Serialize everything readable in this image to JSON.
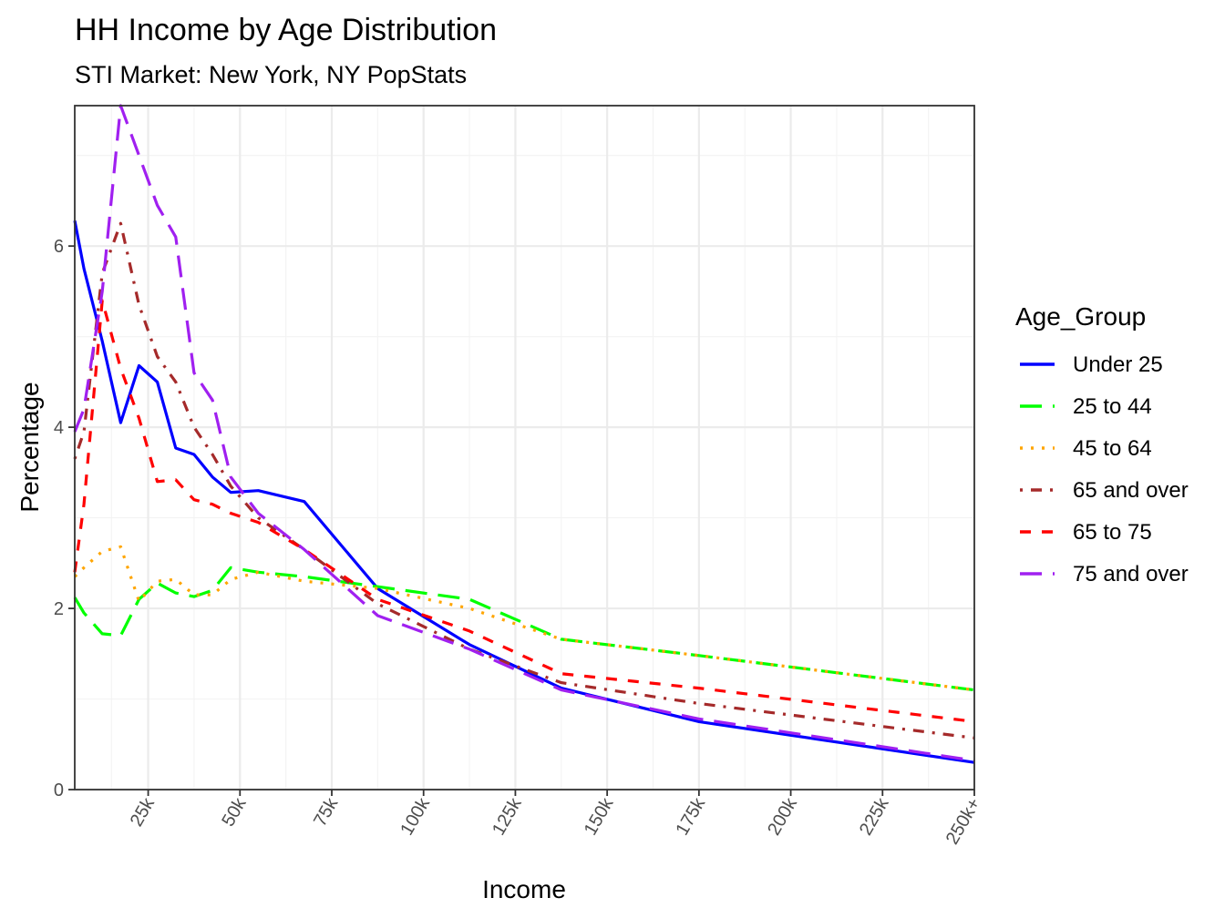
{
  "chart_data": {
    "type": "line",
    "title": "HH Income by Age Distribution",
    "subtitle": "STI Market: New York, NY PopStats",
    "xlabel": "Income",
    "ylabel": "Percentage",
    "x_unit": "thousands of dollars",
    "xlim": [
      5,
      250
    ],
    "ylim": [
      0,
      7.55
    ],
    "x_ticks": [
      {
        "value": 25,
        "label": "25k"
      },
      {
        "value": 50,
        "label": "50k"
      },
      {
        "value": 75,
        "label": "75k"
      },
      {
        "value": 100,
        "label": "100k"
      },
      {
        "value": 125,
        "label": "125k"
      },
      {
        "value": 150,
        "label": "150k"
      },
      {
        "value": 175,
        "label": "175k"
      },
      {
        "value": 200,
        "label": "200k"
      },
      {
        "value": 225,
        "label": "225k"
      },
      {
        "value": 250,
        "label": "250k+"
      }
    ],
    "y_ticks": [
      {
        "value": 0,
        "label": "0"
      },
      {
        "value": 2,
        "label": "2"
      },
      {
        "value": 4,
        "label": "4"
      },
      {
        "value": 6,
        "label": "6"
      }
    ],
    "grid": true,
    "legend": {
      "title": "Age_Group",
      "position": "right"
    },
    "x": [
      5,
      7.5,
      12.5,
      17.5,
      22.5,
      27.5,
      32.5,
      37.5,
      42.5,
      47.5,
      55,
      67.5,
      87.5,
      112.5,
      137.5,
      175,
      250
    ],
    "series": [
      {
        "name": "Under 25",
        "color": "#0000ff",
        "dash": "solid",
        "values": [
          6.28,
          5.75,
          4.95,
          4.05,
          4.68,
          4.5,
          3.77,
          3.7,
          3.45,
          3.28,
          3.3,
          3.18,
          2.22,
          1.6,
          1.12,
          0.75,
          0.3
        ]
      },
      {
        "name": "25 to 44",
        "color": "#00ff00",
        "dash": "longdash",
        "values": [
          2.12,
          1.95,
          1.72,
          1.7,
          2.1,
          2.28,
          2.17,
          2.13,
          2.2,
          2.45,
          2.4,
          2.35,
          2.24,
          2.1,
          1.66,
          1.48,
          1.1
        ]
      },
      {
        "name": "45 to 64",
        "color": "#ffa500",
        "dash": "dotted",
        "values": [
          2.35,
          2.45,
          2.63,
          2.68,
          2.08,
          2.3,
          2.32,
          2.15,
          2.15,
          2.32,
          2.4,
          2.3,
          2.22,
          2.0,
          1.66,
          1.48,
          1.1
        ]
      },
      {
        "name": "65 and over",
        "color": "#a52a2a",
        "dash": "dotdash",
        "values": [
          3.65,
          3.95,
          5.7,
          6.25,
          5.35,
          4.78,
          4.5,
          4.0,
          3.7,
          3.35,
          3.0,
          2.65,
          2.05,
          1.55,
          1.18,
          0.95,
          0.57
        ]
      },
      {
        "name": "65 to 75",
        "color": "#ff0000",
        "dash": "dashed",
        "values": [
          2.4,
          3.15,
          5.4,
          4.65,
          4.1,
          3.4,
          3.42,
          3.2,
          3.15,
          3.05,
          2.95,
          2.65,
          2.1,
          1.75,
          1.28,
          1.12,
          0.75
        ]
      },
      {
        "name": "75 and over",
        "color": "#a020f0",
        "dash": "longdash",
        "values": [
          3.95,
          4.2,
          5.5,
          7.55,
          7.0,
          6.45,
          6.1,
          4.6,
          4.3,
          3.45,
          3.05,
          2.65,
          1.92,
          1.55,
          1.1,
          0.78,
          0.32
        ]
      }
    ]
  }
}
